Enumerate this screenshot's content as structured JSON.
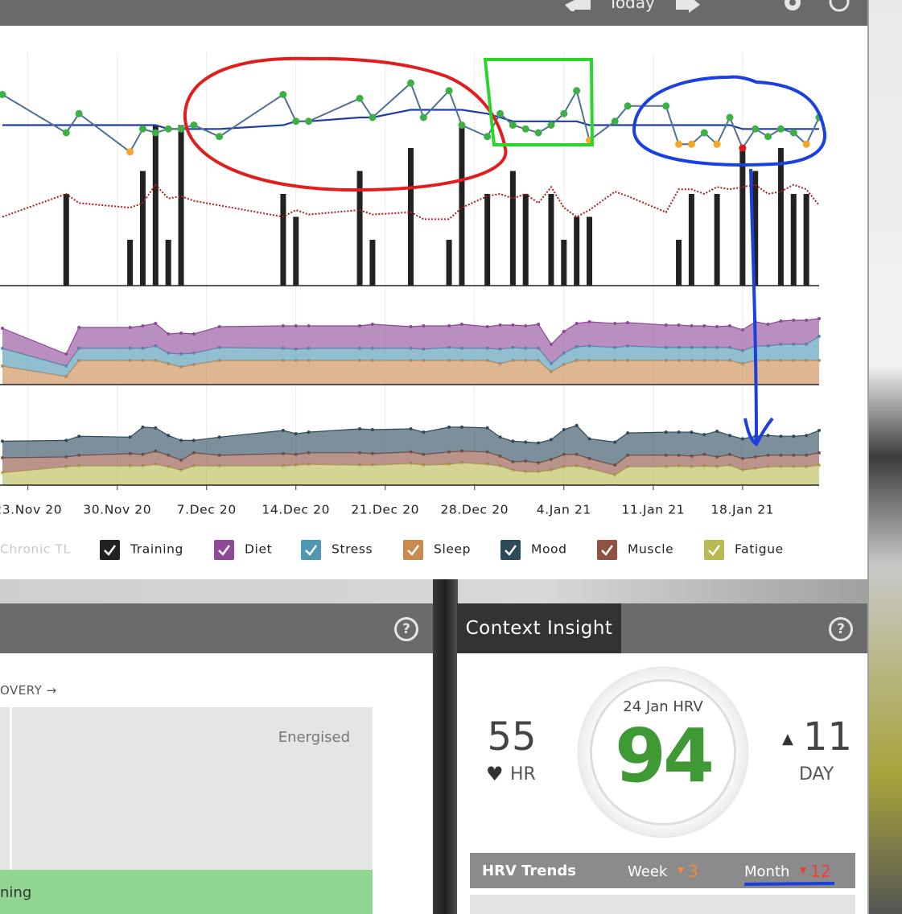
{
  "header": {
    "today": "Today"
  },
  "chart_data": [
    {
      "type": "combo",
      "xlim": [
        "21.Nov 20",
        "24.Jan 21"
      ],
      "ylim": [
        50,
        110
      ],
      "y2lim": [
        0,
        10
      ],
      "x": [
        "21.Nov 20",
        "26.Nov 20",
        "27.Nov 20",
        "1.Dec 20",
        "2.Dec 20",
        "3.Dec 20",
        "4.Dec 20",
        "5.Dec 20",
        "6.Dec 20",
        "8.Dec 20",
        "13.Dec 20",
        "14.Dec 20",
        "15.Dec 20",
        "19.Dec 20",
        "20.Dec 20",
        "23.Dec 20",
        "24.Dec 20",
        "26.Dec 20",
        "27.Dec 20",
        "29.Dec 20",
        "30.Dec 20",
        "31.Dec 20",
        "1.Jan 21",
        "2.Jan 21",
        "3.Jan 21",
        "4.Jan 21",
        "5.Jan 21",
        "6.Jan 21",
        "8.Jan 21",
        "9.Jan 21",
        "12.Jan 21",
        "13.Jan 21",
        "14.Jan 21",
        "15.Jan 21",
        "16.Jan 21",
        "17.Jan 21",
        "18.Jan 21",
        "19.Jan 21",
        "20.Jan 21",
        "21.Jan 21",
        "22.Jan 21",
        "23.Jan 21",
        "24.Jan 21"
      ],
      "series": [
        {
          "name": "Chronic TL",
          "type": "line",
          "style": "dotted",
          "axis": "y2",
          "color": "#b01c1c",
          "legend_disabled": true,
          "values": [
            3.0,
            4.0,
            3.6,
            3.4,
            3.6,
            4.4,
            3.8,
            3.9,
            3.7,
            3.5,
            3.0,
            3.3,
            3.1,
            3.3,
            3.1,
            3.2,
            2.9,
            2.9,
            3.4,
            3.9,
            4.0,
            3.8,
            4.0,
            3.6,
            4.3,
            3.4,
            3.0,
            3.3,
            4.1,
            3.9,
            3.2,
            4.2,
            4.2,
            4.0,
            4.3,
            4.2,
            4.3,
            4.4,
            4.0,
            4.1,
            4.4,
            4.2,
            3.5
          ]
        },
        {
          "name": "Training",
          "type": "bar",
          "axis": "y2",
          "color": "#222222",
          "values": [
            null,
            4,
            null,
            2,
            5,
            7,
            2,
            7,
            null,
            null,
            4,
            3,
            null,
            5,
            2,
            6,
            null,
            2,
            7,
            4,
            null,
            5,
            4,
            null,
            4,
            2,
            3,
            3,
            null,
            null,
            null,
            2,
            4,
            null,
            4,
            null,
            6,
            5,
            null,
            6,
            4,
            4,
            null
          ]
        },
        {
          "type": "line",
          "color": "#1f3da6",
          "width": 2.2,
          "values": [
            92,
            92,
            92,
            92,
            92,
            92,
            91,
            91,
            91,
            91,
            92,
            93,
            93,
            94,
            94,
            96,
            96,
            96,
            96,
            95,
            94,
            93,
            93,
            93,
            93,
            93,
            93,
            92,
            92,
            92,
            92,
            92,
            92,
            92,
            92,
            92,
            91,
            91,
            91,
            91,
            91,
            91,
            91
          ]
        },
        {
          "type": "line",
          "color": "#4f7196",
          "width": 2,
          "markers": true,
          "values": [
            100,
            90,
            95,
            85,
            91,
            90,
            91,
            91,
            92,
            89,
            100,
            93,
            93,
            99,
            94,
            103,
            94,
            101,
            92,
            89,
            95,
            92,
            91,
            90,
            92,
            95,
            101,
            88,
            93,
            97,
            97,
            87,
            87,
            90,
            87,
            94,
            86,
            91,
            89,
            91,
            90,
            87,
            94
          ],
          "point_colors": [
            "#3cb043",
            "#3cb043",
            "#3cb043",
            "#f5a623",
            "#3cb043",
            "#3cb043",
            "#3cb043",
            "#3cb043",
            "#3cb043",
            "#3cb043",
            "#3cb043",
            "#3cb043",
            "#3cb043",
            "#3cb043",
            "#3cb043",
            "#3cb043",
            "#3cb043",
            "#3cb043",
            "#3cb043",
            "#3cb043",
            "#3cb043",
            "#3cb043",
            "#3cb043",
            "#3cb043",
            "#3cb043",
            "#3cb043",
            "#3cb043",
            "#f5a623",
            "#3cb043",
            "#3cb043",
            "#3cb043",
            "#f5a623",
            "#f5a623",
            "#3cb043",
            "#f5a623",
            "#3cb043",
            "#e0191b",
            "#3cb043",
            "#3cb043",
            "#3cb043",
            "#3cb043",
            "#f5a623",
            "#3cb043"
          ]
        }
      ]
    },
    {
      "type": "stacked_area",
      "xlim": [
        "21.Nov 20",
        "24.Jan 21"
      ],
      "ylim": [
        0,
        10
      ],
      "x": [
        "21.Nov 20",
        "26.Nov 20",
        "27.Nov 20",
        "1.Dec 20",
        "2.Dec 20",
        "3.Dec 20",
        "4.Dec 20",
        "5.Dec 20",
        "6.Dec 20",
        "8.Dec 20",
        "13.Dec 20",
        "14.Dec 20",
        "15.Dec 20",
        "19.Dec 20",
        "20.Dec 20",
        "23.Dec 20",
        "24.Dec 20",
        "26.Dec 20",
        "27.Dec 20",
        "29.Dec 20",
        "30.Dec 20",
        "31.Dec 20",
        "1.Jan 21",
        "2.Jan 21",
        "3.Jan 21",
        "4.Jan 21",
        "5.Jan 21",
        "6.Jan 21",
        "8.Jan 21",
        "9.Jan 21",
        "12.Jan 21",
        "13.Jan 21",
        "14.Jan 21",
        "15.Jan 21",
        "16.Jan 21",
        "17.Jan 21",
        "18.Jan 21",
        "19.Jan 21",
        "20.Jan 21",
        "21.Jan 21",
        "22.Jan 21",
        "23.Jan 21",
        "24.Jan 21"
      ],
      "series": [
        {
          "name": "Diet",
          "color": "#8e4a99",
          "values": [
            2.5,
            1.5,
            2.6,
            2.6,
            2.8,
            2.8,
            2.4,
            2.6,
            2.4,
            2.6,
            2.8,
            2.9,
            2.8,
            2.8,
            3.0,
            2.7,
            2.9,
            2.7,
            3.0,
            2.7,
            3.0,
            2.8,
            2.8,
            3.0,
            2.4,
            2.7,
            2.9,
            3.0,
            3.0,
            2.9,
            2.8,
            2.8,
            2.7,
            2.7,
            2.6,
            2.7,
            2.6,
            3.0,
            2.7,
            2.9,
            3.0,
            3.0,
            2.2
          ]
        },
        {
          "name": "Stress",
          "color": "#4f98b3",
          "values": [
            2.2,
            1.3,
            1.5,
            1.5,
            1.5,
            1.8,
            1.3,
            1.6,
            1.4,
            1.6,
            1.5,
            1.4,
            1.5,
            1.5,
            1.5,
            1.5,
            1.4,
            1.6,
            1.5,
            1.5,
            1.8,
            1.6,
            1.5,
            1.5,
            1.0,
            1.4,
            1.7,
            1.8,
            1.6,
            1.8,
            1.6,
            1.6,
            1.6,
            1.6,
            1.6,
            1.6,
            1.6,
            1.8,
            1.8,
            2.0,
            2.0,
            2.0,
            3.0
          ]
        },
        {
          "name": "Sleep",
          "color": "#c9894f",
          "values": [
            2.3,
            1.0,
            3.0,
            3.0,
            3.0,
            3.0,
            2.6,
            2.2,
            2.5,
            3.0,
            3.0,
            3.0,
            3.0,
            3.0,
            3.0,
            3.0,
            3.0,
            3.0,
            3.0,
            3.0,
            2.6,
            3.0,
            3.0,
            3.0,
            1.6,
            2.5,
            3.0,
            3.0,
            3.0,
            3.0,
            3.0,
            3.0,
            3.0,
            3.0,
            3.0,
            3.0,
            2.6,
            3.0,
            3.0,
            3.0,
            3.0,
            3.0,
            3.0
          ]
        }
      ]
    },
    {
      "type": "stacked_area",
      "xlim": [
        "21.Nov 20",
        "24.Jan 21"
      ],
      "ylim": [
        0,
        10
      ],
      "xticks": [
        "23.Nov 20",
        "30.Nov 20",
        "7.Dec 20",
        "14.Dec 20",
        "21.Dec 20",
        "28.Dec 20",
        "4.Jan 21",
        "11.Jan 21",
        "18.Jan 21"
      ],
      "x": [
        "21.Nov 20",
        "26.Nov 20",
        "27.Nov 20",
        "1.Dec 20",
        "2.Dec 20",
        "3.Dec 20",
        "4.Dec 20",
        "5.Dec 20",
        "6.Dec 20",
        "8.Dec 20",
        "13.Dec 20",
        "14.Dec 20",
        "15.Dec 20",
        "19.Dec 20",
        "20.Dec 20",
        "23.Dec 20",
        "24.Dec 20",
        "26.Dec 20",
        "27.Dec 20",
        "29.Dec 20",
        "30.Dec 20",
        "31.Dec 20",
        "1.Jan 21",
        "2.Jan 21",
        "3.Jan 21",
        "4.Jan 21",
        "5.Jan 21",
        "6.Jan 21",
        "8.Jan 21",
        "9.Jan 21",
        "12.Jan 21",
        "13.Jan 21",
        "14.Jan 21",
        "15.Jan 21",
        "16.Jan 21",
        "17.Jan 21",
        "18.Jan 21",
        "19.Jan 21",
        "20.Jan 21",
        "21.Jan 21",
        "22.Jan 21",
        "23.Jan 21",
        "24.Jan 21"
      ],
      "series": [
        {
          "name": "Mood",
          "color": "#2c4a5c",
          "values": [
            2.0,
            2.0,
            2.3,
            2.0,
            3.3,
            2.8,
            2.4,
            2.4,
            1.5,
            2.2,
            2.8,
            2.5,
            2.5,
            2.9,
            2.9,
            2.8,
            2.7,
            3.0,
            2.9,
            2.9,
            2.3,
            2.5,
            2.3,
            2.4,
            2.4,
            3.0,
            3.5,
            2.4,
            2.8,
            2.7,
            2.8,
            2.8,
            2.9,
            2.4,
            3.1,
            2.3,
            2.4,
            2.5,
            2.4,
            2.3,
            2.3,
            2.4,
            2.7
          ]
        },
        {
          "name": "Muscle",
          "color": "#8f5243",
          "values": [
            1.8,
            1.2,
            1.3,
            1.5,
            1.4,
            1.6,
            1.4,
            1.2,
            1.6,
            1.3,
            1.5,
            1.3,
            1.4,
            1.5,
            1.4,
            1.4,
            1.3,
            1.5,
            1.4,
            1.5,
            1.2,
            1.0,
            1.3,
            1.1,
            1.3,
            1.5,
            1.4,
            1.2,
            1.2,
            1.4,
            1.4,
            1.3,
            1.3,
            1.4,
            1.2,
            1.3,
            1.4,
            1.4,
            1.4,
            1.4,
            1.4,
            1.4,
            1.5
          ]
        },
        {
          "name": "Fatigue",
          "color": "#b9bb52",
          "values": [
            1.5,
            2.2,
            2.3,
            2.3,
            2.3,
            2.5,
            2.2,
            1.8,
            2.3,
            2.3,
            2.3,
            2.4,
            2.5,
            2.4,
            2.4,
            2.6,
            2.4,
            2.5,
            2.7,
            2.5,
            2.3,
            1.8,
            1.6,
            1.6,
            1.8,
            2.2,
            2.3,
            2.0,
            1.2,
            2.2,
            2.2,
            2.3,
            2.2,
            2.3,
            2.2,
            2.4,
            1.8,
            2.0,
            2.2,
            2.2,
            2.2,
            2.2,
            2.4
          ]
        }
      ]
    }
  ],
  "left_panel": {
    "axis_label": "OVERY →",
    "zone_top": "Energised",
    "zone_bottom": "ning"
  },
  "context_insight": {
    "title": "Context Insight",
    "hr_value": 55,
    "hr_label": "HR",
    "hrv_label": "24 Jan HRV",
    "hrv_value": 94,
    "day_value": 11,
    "day_label": "DAY",
    "trends_title": "HRV Trends",
    "week_label": "Week",
    "week_value": 3,
    "month_label": "Month",
    "month_value": 12
  }
}
